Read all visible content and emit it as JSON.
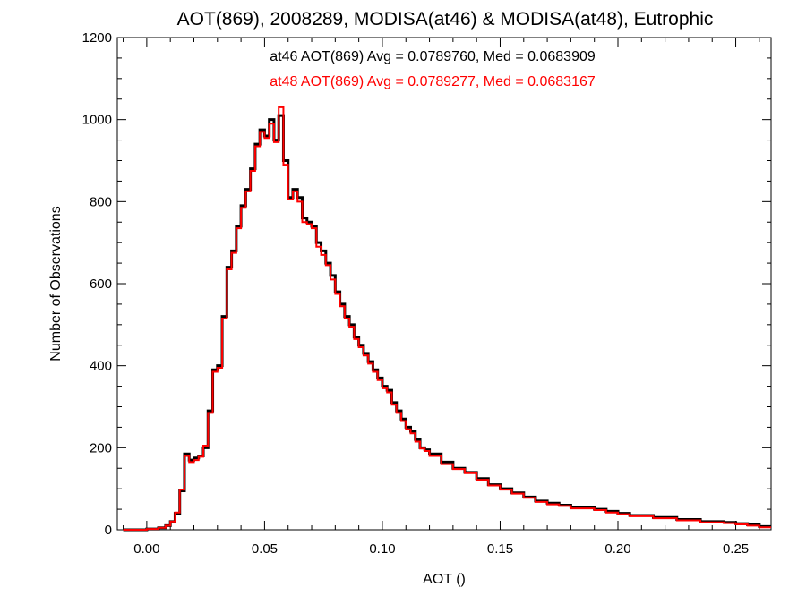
{
  "chart_data": {
    "type": "histogram",
    "title": "AOT(869), 2008289, MODISA(at46) & MODISA(at48), Eutrophic",
    "xlabel": "AOT ()",
    "ylabel": "Number of Observations",
    "xlim": [
      -0.0125,
      0.265
    ],
    "ylim": [
      0,
      1200
    ],
    "xticks": [
      0.0,
      0.05,
      0.1,
      0.15,
      0.2,
      0.25
    ],
    "xtick_labels": [
      "0.00",
      "0.05",
      "0.10",
      "0.15",
      "0.20",
      "0.25"
    ],
    "yticks": [
      0,
      200,
      400,
      600,
      800,
      1000,
      1200
    ],
    "ytick_labels": [
      "0",
      "200",
      "400",
      "600",
      "800",
      "1000",
      "1200"
    ],
    "grid": false,
    "annotations": [
      {
        "text": "at46 AOT(869) Avg = 0.0789760, Med = 0.0683909",
        "color": "#000000"
      },
      {
        "text": "at48 AOT(869) Avg = 0.0789277, Med = 0.0683167",
        "color": "#ff0000"
      }
    ],
    "series": [
      {
        "color": "#000000",
        "x": [
          -0.01,
          0.0,
          0.005,
          0.008,
          0.01,
          0.012,
          0.014,
          0.016,
          0.018,
          0.02,
          0.022,
          0.024,
          0.026,
          0.028,
          0.03,
          0.032,
          0.034,
          0.036,
          0.038,
          0.04,
          0.042,
          0.044,
          0.046,
          0.048,
          0.05,
          0.052,
          0.054,
          0.056,
          0.058,
          0.06,
          0.062,
          0.064,
          0.066,
          0.068,
          0.07,
          0.072,
          0.074,
          0.076,
          0.078,
          0.08,
          0.082,
          0.084,
          0.086,
          0.088,
          0.09,
          0.092,
          0.094,
          0.096,
          0.098,
          0.1,
          0.102,
          0.104,
          0.106,
          0.108,
          0.11,
          0.112,
          0.114,
          0.116,
          0.118,
          0.12,
          0.125,
          0.13,
          0.135,
          0.14,
          0.145,
          0.15,
          0.155,
          0.16,
          0.165,
          0.17,
          0.175,
          0.18,
          0.185,
          0.19,
          0.195,
          0.2,
          0.205,
          0.21,
          0.215,
          0.22,
          0.225,
          0.23,
          0.235,
          0.24,
          0.245,
          0.25,
          0.255,
          0.26
        ],
        "values": [
          0,
          2,
          5,
          10,
          20,
          40,
          95,
          185,
          170,
          175,
          180,
          200,
          290,
          390,
          400,
          520,
          640,
          680,
          740,
          790,
          830,
          880,
          940,
          975,
          960,
          1000,
          950,
          1010,
          900,
          810,
          830,
          810,
          760,
          750,
          740,
          700,
          680,
          650,
          620,
          580,
          550,
          520,
          500,
          470,
          450,
          430,
          410,
          390,
          370,
          350,
          340,
          310,
          290,
          270,
          250,
          240,
          220,
          200,
          195,
          185,
          165,
          150,
          140,
          125,
          110,
          100,
          90,
          80,
          70,
          65,
          60,
          55,
          55,
          50,
          45,
          40,
          35,
          35,
          30,
          30,
          25,
          25,
          20,
          20,
          18,
          15,
          12,
          8
        ]
      },
      {
        "color": "#ff0000",
        "x": [
          -0.01,
          0.0,
          0.005,
          0.008,
          0.01,
          0.012,
          0.014,
          0.016,
          0.018,
          0.02,
          0.022,
          0.024,
          0.026,
          0.028,
          0.03,
          0.032,
          0.034,
          0.036,
          0.038,
          0.04,
          0.042,
          0.044,
          0.046,
          0.048,
          0.05,
          0.052,
          0.054,
          0.056,
          0.058,
          0.06,
          0.062,
          0.064,
          0.066,
          0.068,
          0.07,
          0.072,
          0.074,
          0.076,
          0.078,
          0.08,
          0.082,
          0.084,
          0.086,
          0.088,
          0.09,
          0.092,
          0.094,
          0.096,
          0.098,
          0.1,
          0.102,
          0.104,
          0.106,
          0.108,
          0.11,
          0.112,
          0.114,
          0.116,
          0.118,
          0.12,
          0.125,
          0.13,
          0.135,
          0.14,
          0.145,
          0.15,
          0.155,
          0.16,
          0.165,
          0.17,
          0.175,
          0.18,
          0.185,
          0.19,
          0.195,
          0.2,
          0.205,
          0.21,
          0.215,
          0.22,
          0.225,
          0.23,
          0.235,
          0.24,
          0.245,
          0.25,
          0.255,
          0.26
        ],
        "values": [
          0,
          2,
          5,
          10,
          20,
          42,
          98,
          180,
          165,
          170,
          178,
          205,
          285,
          385,
          395,
          515,
          635,
          675,
          735,
          785,
          825,
          875,
          935,
          970,
          955,
          990,
          945,
          1030,
          890,
          805,
          825,
          800,
          750,
          745,
          735,
          690,
          670,
          645,
          610,
          575,
          545,
          515,
          495,
          465,
          445,
          425,
          405,
          385,
          365,
          345,
          335,
          305,
          285,
          265,
          245,
          235,
          215,
          198,
          192,
          180,
          160,
          148,
          138,
          122,
          108,
          98,
          88,
          78,
          68,
          62,
          58,
          52,
          52,
          48,
          42,
          38,
          33,
          33,
          28,
          28,
          23,
          23,
          18,
          18,
          16,
          13,
          10,
          6
        ]
      }
    ]
  }
}
